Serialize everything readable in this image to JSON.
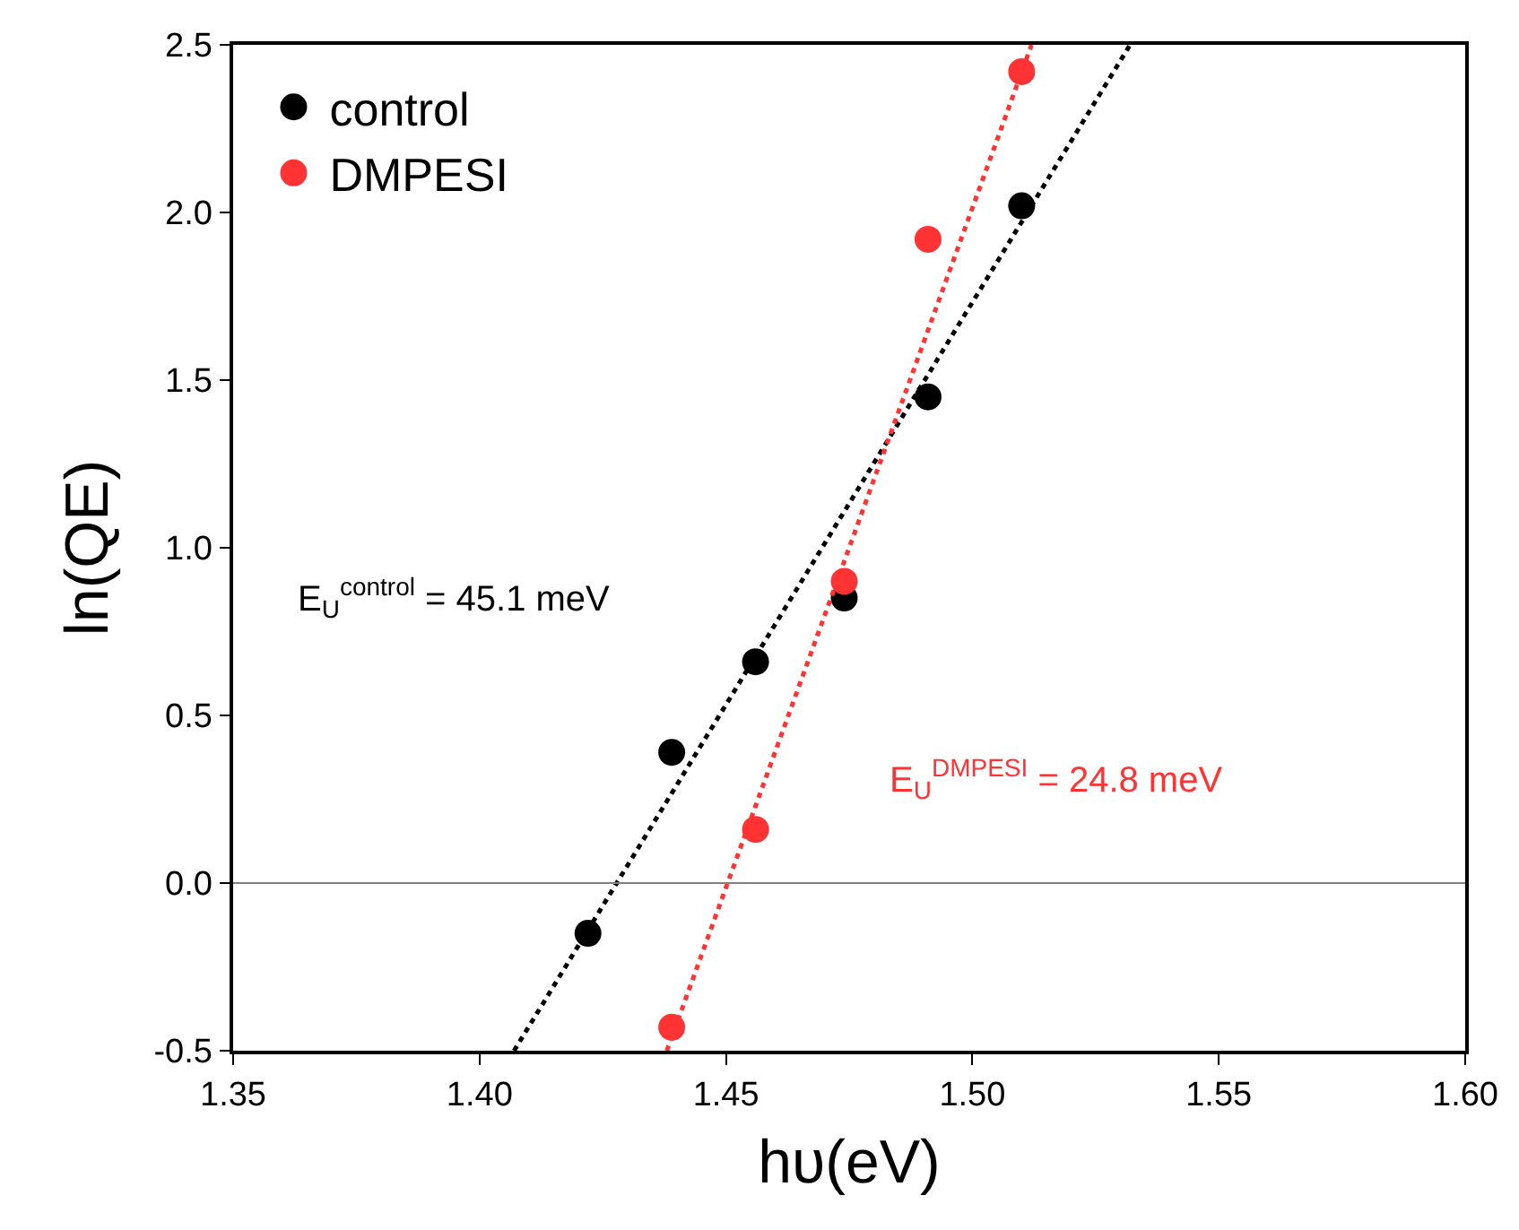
{
  "chart_data": {
    "type": "scatter",
    "xlabel": "hυ(eV)",
    "ylabel": "ln(QE)",
    "xlim": [
      1.35,
      1.6
    ],
    "ylim": [
      -0.5,
      2.5
    ],
    "xticks": [
      {
        "value": 1.35,
        "label": "1.35"
      },
      {
        "value": 1.4,
        "label": "1.40"
      },
      {
        "value": 1.45,
        "label": "1.45"
      },
      {
        "value": 1.5,
        "label": "1.50"
      },
      {
        "value": 1.55,
        "label": "1.55"
      },
      {
        "value": 1.6,
        "label": "1.60"
      }
    ],
    "yticks": [
      {
        "value": -0.5,
        "label": "-0.5"
      },
      {
        "value": 0,
        "label": "0.0"
      },
      {
        "value": 0.5,
        "label": "0.5"
      },
      {
        "value": 1,
        "label": "1.0"
      },
      {
        "value": 1.5,
        "label": "1.5"
      },
      {
        "value": 2,
        "label": "2.0"
      },
      {
        "value": 2.5,
        "label": "2.5"
      }
    ],
    "legend": "top left",
    "series": [
      {
        "name": "control",
        "marker": "circle",
        "color": "#000000",
        "x": [
          1.422,
          1.439,
          1.456,
          1.474,
          1.491,
          1.51
        ],
        "values": [
          -0.15,
          0.39,
          0.66,
          0.85,
          1.45,
          2.02
        ]
      },
      {
        "name": "DMPESI",
        "marker": "circle",
        "color": "#ff3333",
        "x": [
          1.439,
          1.456,
          1.474,
          1.491,
          1.51
        ],
        "values": [
          -0.43,
          0.16,
          0.9,
          1.92,
          2.42
        ]
      },
      {
        "type": "line",
        "marker": "none",
        "line_style": "dotted",
        "color": "#000000",
        "x": [
          1.407,
          1.532
        ],
        "values": [
          -0.5,
          2.5
        ]
      },
      {
        "type": "line",
        "marker": "none",
        "line_style": "dotted",
        "color": "#ff3333",
        "x": [
          1.438,
          1.512
        ],
        "values": [
          -0.5,
          2.5
        ]
      }
    ],
    "ref_lines": [
      {
        "axis": "y",
        "value": 0,
        "color": "#808080"
      }
    ],
    "annotations": [
      "E$_{U}$$^{control}$ = 45.1 meV",
      "E$_{U}$$^{DMPESI}$ = 24.8 meV"
    ]
  }
}
